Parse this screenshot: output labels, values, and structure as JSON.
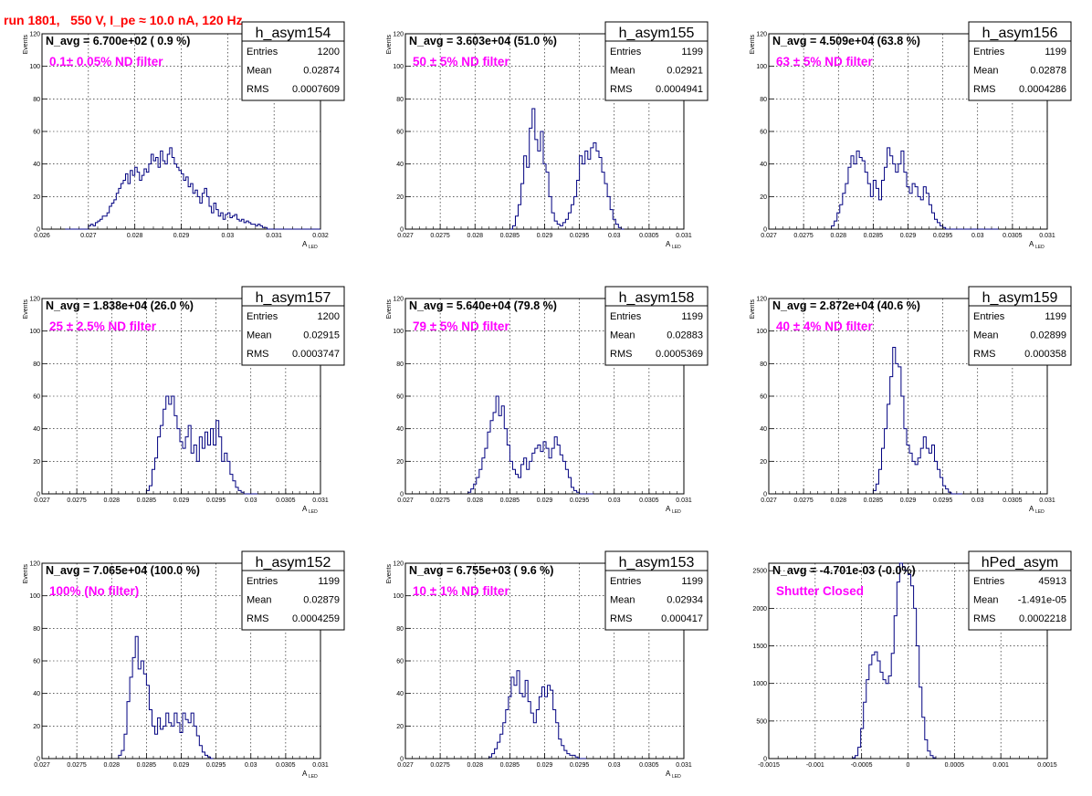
{
  "run_title": "run 1801,   550 V, I_pe ≈ 10.0 nA, 120 Hz",
  "colors": {
    "histogram": "#000080",
    "label": "#ff00ff",
    "title": "#ff0000",
    "grid": "#000000"
  },
  "chart_data": [
    {
      "type": "histogram",
      "name": "h_asym154",
      "nlabel": "N_avg = 6.700e+02 ( 0.9 %)",
      "filter": "0.1± 0.05% ND filter",
      "stats": {
        "entries": "1200",
        "mean": "0.02874",
        "rms": "0.0007609"
      },
      "xlim": [
        0.026,
        0.032
      ],
      "ylim": [
        0,
        120
      ],
      "xticks": [
        "0.026",
        "0.027",
        "0.028",
        "0.029",
        "0.03",
        "0.031",
        "0.032"
      ],
      "xtick_vals": [
        0.026,
        0.027,
        0.028,
        0.029,
        0.03,
        0.031,
        0.032
      ],
      "yticks": [
        "0",
        "20",
        "40",
        "60",
        "80",
        "100",
        "120"
      ],
      "ytick_vals": [
        0,
        20,
        40,
        60,
        80,
        100,
        120
      ],
      "xlabel": "A",
      "xlabel_sub": "LED",
      "ylabel": "Events",
      "bin_start": 0.0265,
      "bin_width": 5e-05,
      "values": [
        0,
        0,
        0,
        0,
        0,
        0,
        0,
        0,
        0,
        0,
        2,
        3,
        2,
        4,
        5,
        6,
        8,
        8,
        10,
        14,
        16,
        18,
        22,
        25,
        28,
        30,
        34,
        28,
        36,
        33,
        38,
        35,
        30,
        33,
        37,
        35,
        40,
        46,
        42,
        44,
        38,
        48,
        42,
        40,
        46,
        50,
        44,
        40,
        38,
        36,
        34,
        30,
        32,
        26,
        28,
        22,
        24,
        20,
        16,
        22,
        25,
        20,
        14,
        10,
        16,
        12,
        8,
        10,
        6,
        9,
        10,
        7,
        8,
        9,
        6,
        5,
        6,
        4,
        5,
        4,
        3,
        3,
        2,
        3,
        2,
        1,
        1,
        0,
        0,
        0,
        0,
        0,
        0,
        0,
        0,
        0,
        0,
        0,
        0,
        0,
        0,
        0,
        0,
        0,
        0,
        0,
        0,
        0,
        0,
        0
      ]
    },
    {
      "type": "histogram",
      "name": "h_asym155",
      "nlabel": "N_avg = 3.603e+04 (51.0 %)",
      "filter": "50 ± 5% ND filter",
      "stats": {
        "entries": "1199",
        "mean": "0.02921",
        "rms": "0.0004941"
      },
      "xlim": [
        0.027,
        0.031
      ],
      "ylim": [
        0,
        120
      ],
      "xticks": [
        "0.027",
        "0.0275",
        "0.028",
        "0.0285",
        "0.029",
        "0.0295",
        "0.03",
        "0.0305",
        "0.031"
      ],
      "xtick_vals": [
        0.027,
        0.0275,
        0.028,
        0.0285,
        0.029,
        0.0295,
        0.03,
        0.0305,
        0.031
      ],
      "yticks": [
        "0",
        "20",
        "40",
        "60",
        "80",
        "100",
        "120"
      ],
      "ytick_vals": [
        0,
        20,
        40,
        60,
        80,
        100,
        120
      ],
      "xlabel": "A",
      "xlabel_sub": "LED",
      "ylabel": "Events",
      "bin_start": 0.0285,
      "bin_width": 4e-05,
      "values": [
        0,
        2,
        8,
        15,
        28,
        45,
        38,
        62,
        74,
        55,
        48,
        60,
        40,
        35,
        20,
        10,
        5,
        3,
        2,
        4,
        6,
        10,
        15,
        20,
        30,
        45,
        40,
        48,
        43,
        50,
        53,
        48,
        44,
        35,
        28,
        20,
        12,
        6,
        3,
        1,
        0
      ]
    },
    {
      "type": "histogram",
      "name": "h_asym156",
      "nlabel": "N_avg = 4.509e+04 (63.8 %)",
      "filter": "63 ± 5% ND filter",
      "stats": {
        "entries": "1199",
        "mean": "0.02878",
        "rms": "0.0004286"
      },
      "xlim": [
        0.027,
        0.031
      ],
      "ylim": [
        0,
        120
      ],
      "xticks": [
        "0.027",
        "0.0275",
        "0.028",
        "0.0285",
        "0.029",
        "0.0295",
        "0.03",
        "0.0305",
        "0.031"
      ],
      "xtick_vals": [
        0.027,
        0.0275,
        0.028,
        0.0285,
        0.029,
        0.0295,
        0.03,
        0.0305,
        0.031
      ],
      "yticks": [
        "0",
        "20",
        "40",
        "60",
        "80",
        "100",
        "120"
      ],
      "ytick_vals": [
        0,
        20,
        40,
        60,
        80,
        100,
        120
      ],
      "xlabel": "A",
      "xlabel_sub": "LED",
      "ylabel": "Events",
      "bin_start": 0.0279,
      "bin_width": 4e-05,
      "values": [
        2,
        5,
        10,
        15,
        22,
        28,
        38,
        45,
        40,
        48,
        44,
        42,
        35,
        28,
        20,
        30,
        25,
        18,
        30,
        38,
        50,
        45,
        40,
        35,
        40,
        48,
        35,
        26,
        22,
        28,
        26,
        20,
        18,
        26,
        22,
        15,
        10,
        6,
        4,
        2,
        1,
        0,
        0,
        0,
        0,
        0,
        0,
        0,
        0,
        0,
        0,
        0,
        0,
        0,
        0,
        0,
        0,
        0,
        0,
        0
      ]
    },
    {
      "type": "histogram",
      "name": "h_asym157",
      "nlabel": "N_avg = 1.838e+04 (26.0 %)",
      "filter": "25 ± 2.5% ND filter",
      "stats": {
        "entries": "1200",
        "mean": "0.02915",
        "rms": "0.0003747"
      },
      "xlim": [
        0.027,
        0.031
      ],
      "ylim": [
        0,
        120
      ],
      "xticks": [
        "0.027",
        "0.0275",
        "0.028",
        "0.0285",
        "0.029",
        "0.0295",
        "0.03",
        "0.0305",
        "0.031"
      ],
      "xtick_vals": [
        0.027,
        0.0275,
        0.028,
        0.0285,
        0.029,
        0.0295,
        0.03,
        0.0305,
        0.031
      ],
      "yticks": [
        "0",
        "20",
        "40",
        "60",
        "80",
        "100",
        "120"
      ],
      "ytick_vals": [
        0,
        20,
        40,
        60,
        80,
        100,
        120
      ],
      "xlabel": "A",
      "xlabel_sub": "LED",
      "ylabel": "Events",
      "bin_start": 0.0285,
      "bin_width": 4e-05,
      "values": [
        2,
        5,
        15,
        22,
        35,
        42,
        52,
        60,
        55,
        60,
        48,
        40,
        32,
        28,
        35,
        42,
        25,
        30,
        20,
        35,
        28,
        38,
        30,
        40,
        30,
        45,
        35,
        20,
        25,
        20,
        12,
        8,
        4,
        2,
        1,
        0,
        0,
        0,
        0,
        0
      ]
    },
    {
      "type": "histogram",
      "name": "h_asym158",
      "nlabel": "N_avg = 5.640e+04 (79.8 %)",
      "filter": "79 ± 5% ND filter",
      "stats": {
        "entries": "1199",
        "mean": "0.02883",
        "rms": "0.0005369"
      },
      "xlim": [
        0.027,
        0.031
      ],
      "ylim": [
        0,
        120
      ],
      "xticks": [
        "0.027",
        "0.0275",
        "0.028",
        "0.0285",
        "0.029",
        "0.0295",
        "0.03",
        "0.0305",
        "0.031"
      ],
      "xtick_vals": [
        0.027,
        0.0275,
        0.028,
        0.0285,
        0.029,
        0.0295,
        0.03,
        0.0305,
        0.031
      ],
      "yticks": [
        "0",
        "20",
        "40",
        "60",
        "80",
        "100",
        "120"
      ],
      "ytick_vals": [
        0,
        20,
        40,
        60,
        80,
        100,
        120
      ],
      "xlabel": "A",
      "xlabel_sub": "LED",
      "ylabel": "Events",
      "bin_start": 0.0279,
      "bin_width": 4e-05,
      "values": [
        1,
        3,
        6,
        10,
        15,
        22,
        28,
        38,
        45,
        50,
        60,
        48,
        54,
        40,
        30,
        20,
        15,
        12,
        10,
        18,
        22,
        15,
        20,
        25,
        28,
        30,
        26,
        32,
        28,
        22,
        28,
        35,
        30,
        24,
        20,
        15,
        10,
        4,
        2,
        1,
        0,
        0,
        0,
        0,
        0
      ]
    },
    {
      "type": "histogram",
      "name": "h_asym159",
      "nlabel": "N_avg = 2.872e+04 (40.6 %)",
      "filter": "40 ± 4% ND filter",
      "stats": {
        "entries": "1199",
        "mean": "0.02899",
        "rms": "0.000358"
      },
      "xlim": [
        0.027,
        0.031
      ],
      "ylim": [
        0,
        120
      ],
      "xticks": [
        "0.027",
        "0.0275",
        "0.028",
        "0.0285",
        "0.029",
        "0.0295",
        "0.03",
        "0.0305",
        "0.031"
      ],
      "xtick_vals": [
        0.027,
        0.0275,
        0.028,
        0.0285,
        0.029,
        0.0295,
        0.03,
        0.0305,
        0.031
      ],
      "yticks": [
        "0",
        "20",
        "40",
        "60",
        "80",
        "100",
        "120"
      ],
      "ytick_vals": [
        0,
        20,
        40,
        60,
        80,
        100,
        120
      ],
      "xlabel": "A",
      "xlabel_sub": "LED",
      "ylabel": "Events",
      "bin_start": 0.0285,
      "bin_width": 4e-05,
      "values": [
        2,
        6,
        15,
        28,
        40,
        55,
        72,
        90,
        80,
        78,
        60,
        40,
        30,
        25,
        20,
        18,
        22,
        28,
        35,
        28,
        25,
        30,
        20,
        15,
        10,
        5,
        3,
        1,
        0,
        0,
        0,
        0
      ]
    },
    {
      "type": "histogram",
      "name": "h_asym152",
      "nlabel": "N_avg = 7.065e+04 (100.0 %)",
      "filter": "100% (No filter)",
      "stats": {
        "entries": "1199",
        "mean": "0.02879",
        "rms": "0.0004259"
      },
      "xlim": [
        0.027,
        0.031
      ],
      "ylim": [
        0,
        120
      ],
      "xticks": [
        "0.027",
        "0.0275",
        "0.028",
        "0.0285",
        "0.029",
        "0.0295",
        "0.03",
        "0.0305",
        "0.031"
      ],
      "xtick_vals": [
        0.027,
        0.0275,
        0.028,
        0.0285,
        0.029,
        0.0295,
        0.03,
        0.0305,
        0.031
      ],
      "yticks": [
        "0",
        "20",
        "40",
        "60",
        "80",
        "100",
        "120"
      ],
      "ytick_vals": [
        0,
        20,
        40,
        60,
        80,
        100,
        120
      ],
      "xlabel": "A",
      "xlabel_sub": "LED",
      "ylabel": "Events",
      "bin_start": 0.0281,
      "bin_width": 4e-05,
      "values": [
        2,
        5,
        15,
        35,
        50,
        62,
        75,
        55,
        60,
        52,
        45,
        30,
        20,
        15,
        25,
        18,
        20,
        28,
        22,
        20,
        28,
        22,
        16,
        28,
        24,
        22,
        28,
        20,
        14,
        8,
        4,
        2,
        1,
        0
      ]
    },
    {
      "type": "histogram",
      "name": "h_asym153",
      "nlabel": "N_avg = 6.755e+03 ( 9.6 %)",
      "filter": "10 ± 1% ND filter",
      "stats": {
        "entries": "1199",
        "mean": "0.02934",
        "rms": "0.000417"
      },
      "xlim": [
        0.027,
        0.031
      ],
      "ylim": [
        0,
        120
      ],
      "xticks": [
        "0.027",
        "0.0275",
        "0.028",
        "0.0285",
        "0.029",
        "0.0295",
        "0.03",
        "0.0305",
        "0.031"
      ],
      "xtick_vals": [
        0.027,
        0.0275,
        0.028,
        0.0285,
        0.029,
        0.0295,
        0.03,
        0.0305,
        0.031
      ],
      "yticks": [
        "0",
        "20",
        "40",
        "60",
        "80",
        "100",
        "120"
      ],
      "ytick_vals": [
        0,
        20,
        40,
        60,
        80,
        100,
        120
      ],
      "xlabel": "A",
      "xlabel_sub": "LED",
      "ylabel": "Events",
      "bin_start": 0.0282,
      "bin_width": 4e-05,
      "values": [
        1,
        3,
        6,
        10,
        15,
        22,
        30,
        38,
        50,
        45,
        54,
        40,
        38,
        48,
        35,
        28,
        22,
        30,
        38,
        44,
        38,
        45,
        42,
        30,
        22,
        12,
        8,
        5,
        3,
        2,
        2,
        1,
        0,
        0,
        0
      ]
    },
    {
      "type": "histogram",
      "name": "hPed_asym",
      "nlabel": "N_avg = -4.701e-03 (-0.0%)",
      "filter": "Shutter Closed",
      "stats": {
        "entries": "45913",
        "mean": "-1.491e-05",
        "rms": "0.0002218"
      },
      "xlim": [
        -0.0015,
        0.0015
      ],
      "ylim": [
        0,
        2600
      ],
      "xticks": [
        "-0.0015",
        "-0.001",
        "-0.0005",
        "0",
        "0.0005",
        "0.001",
        "0.0015"
      ],
      "xtick_vals": [
        -0.0015,
        -0.001,
        -0.0005,
        0,
        0.0005,
        0.001,
        0.0015
      ],
      "yticks": [
        "0",
        "500",
        "1000",
        "1500",
        "2000",
        "2500"
      ],
      "ytick_vals": [
        0,
        500,
        1000,
        1500,
        2000,
        2500
      ],
      "xlabel": "",
      "xlabel_sub": "",
      "ylabel": "",
      "bin_start": -0.0006,
      "bin_width": 3e-05,
      "values": [
        10,
        40,
        150,
        400,
        750,
        1050,
        1250,
        1380,
        1420,
        1300,
        1150,
        1050,
        1000,
        1100,
        1400,
        1900,
        2350,
        2600,
        2550,
        2500,
        2450,
        2300,
        2000,
        1500,
        950,
        550,
        250,
        100,
        40,
        10
      ]
    }
  ]
}
